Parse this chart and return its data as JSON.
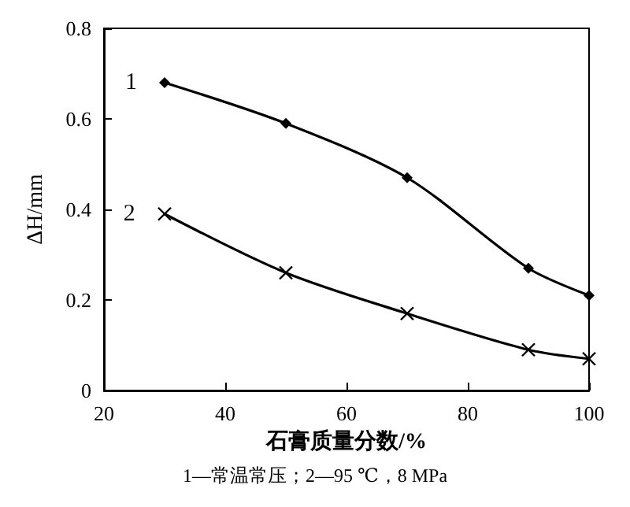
{
  "chart_data": {
    "type": "line",
    "xlabel": "石膏质量分数/%",
    "ylabel": "ΔH/mm",
    "x": [
      30,
      50,
      70,
      90,
      100
    ],
    "series": [
      {
        "name": "1",
        "color": "#000000",
        "marker": "diamond",
        "values": [
          0.68,
          0.59,
          0.47,
          0.27,
          0.21
        ]
      },
      {
        "name": "2",
        "color": "#000000",
        "marker": "cross",
        "values": [
          0.39,
          0.26,
          0.17,
          0.09,
          0.07
        ]
      }
    ],
    "xlim": [
      20,
      100
    ],
    "xticks": [
      20,
      40,
      60,
      80,
      100
    ],
    "ylim": [
      0,
      0.8
    ],
    "yticks": [
      0,
      0.2,
      0.4,
      0.6,
      0.8
    ],
    "grid": false,
    "legend": false,
    "line_style": "solid",
    "annotations": [
      "1—常温常压；2—95 ℃，8 MPa"
    ]
  }
}
